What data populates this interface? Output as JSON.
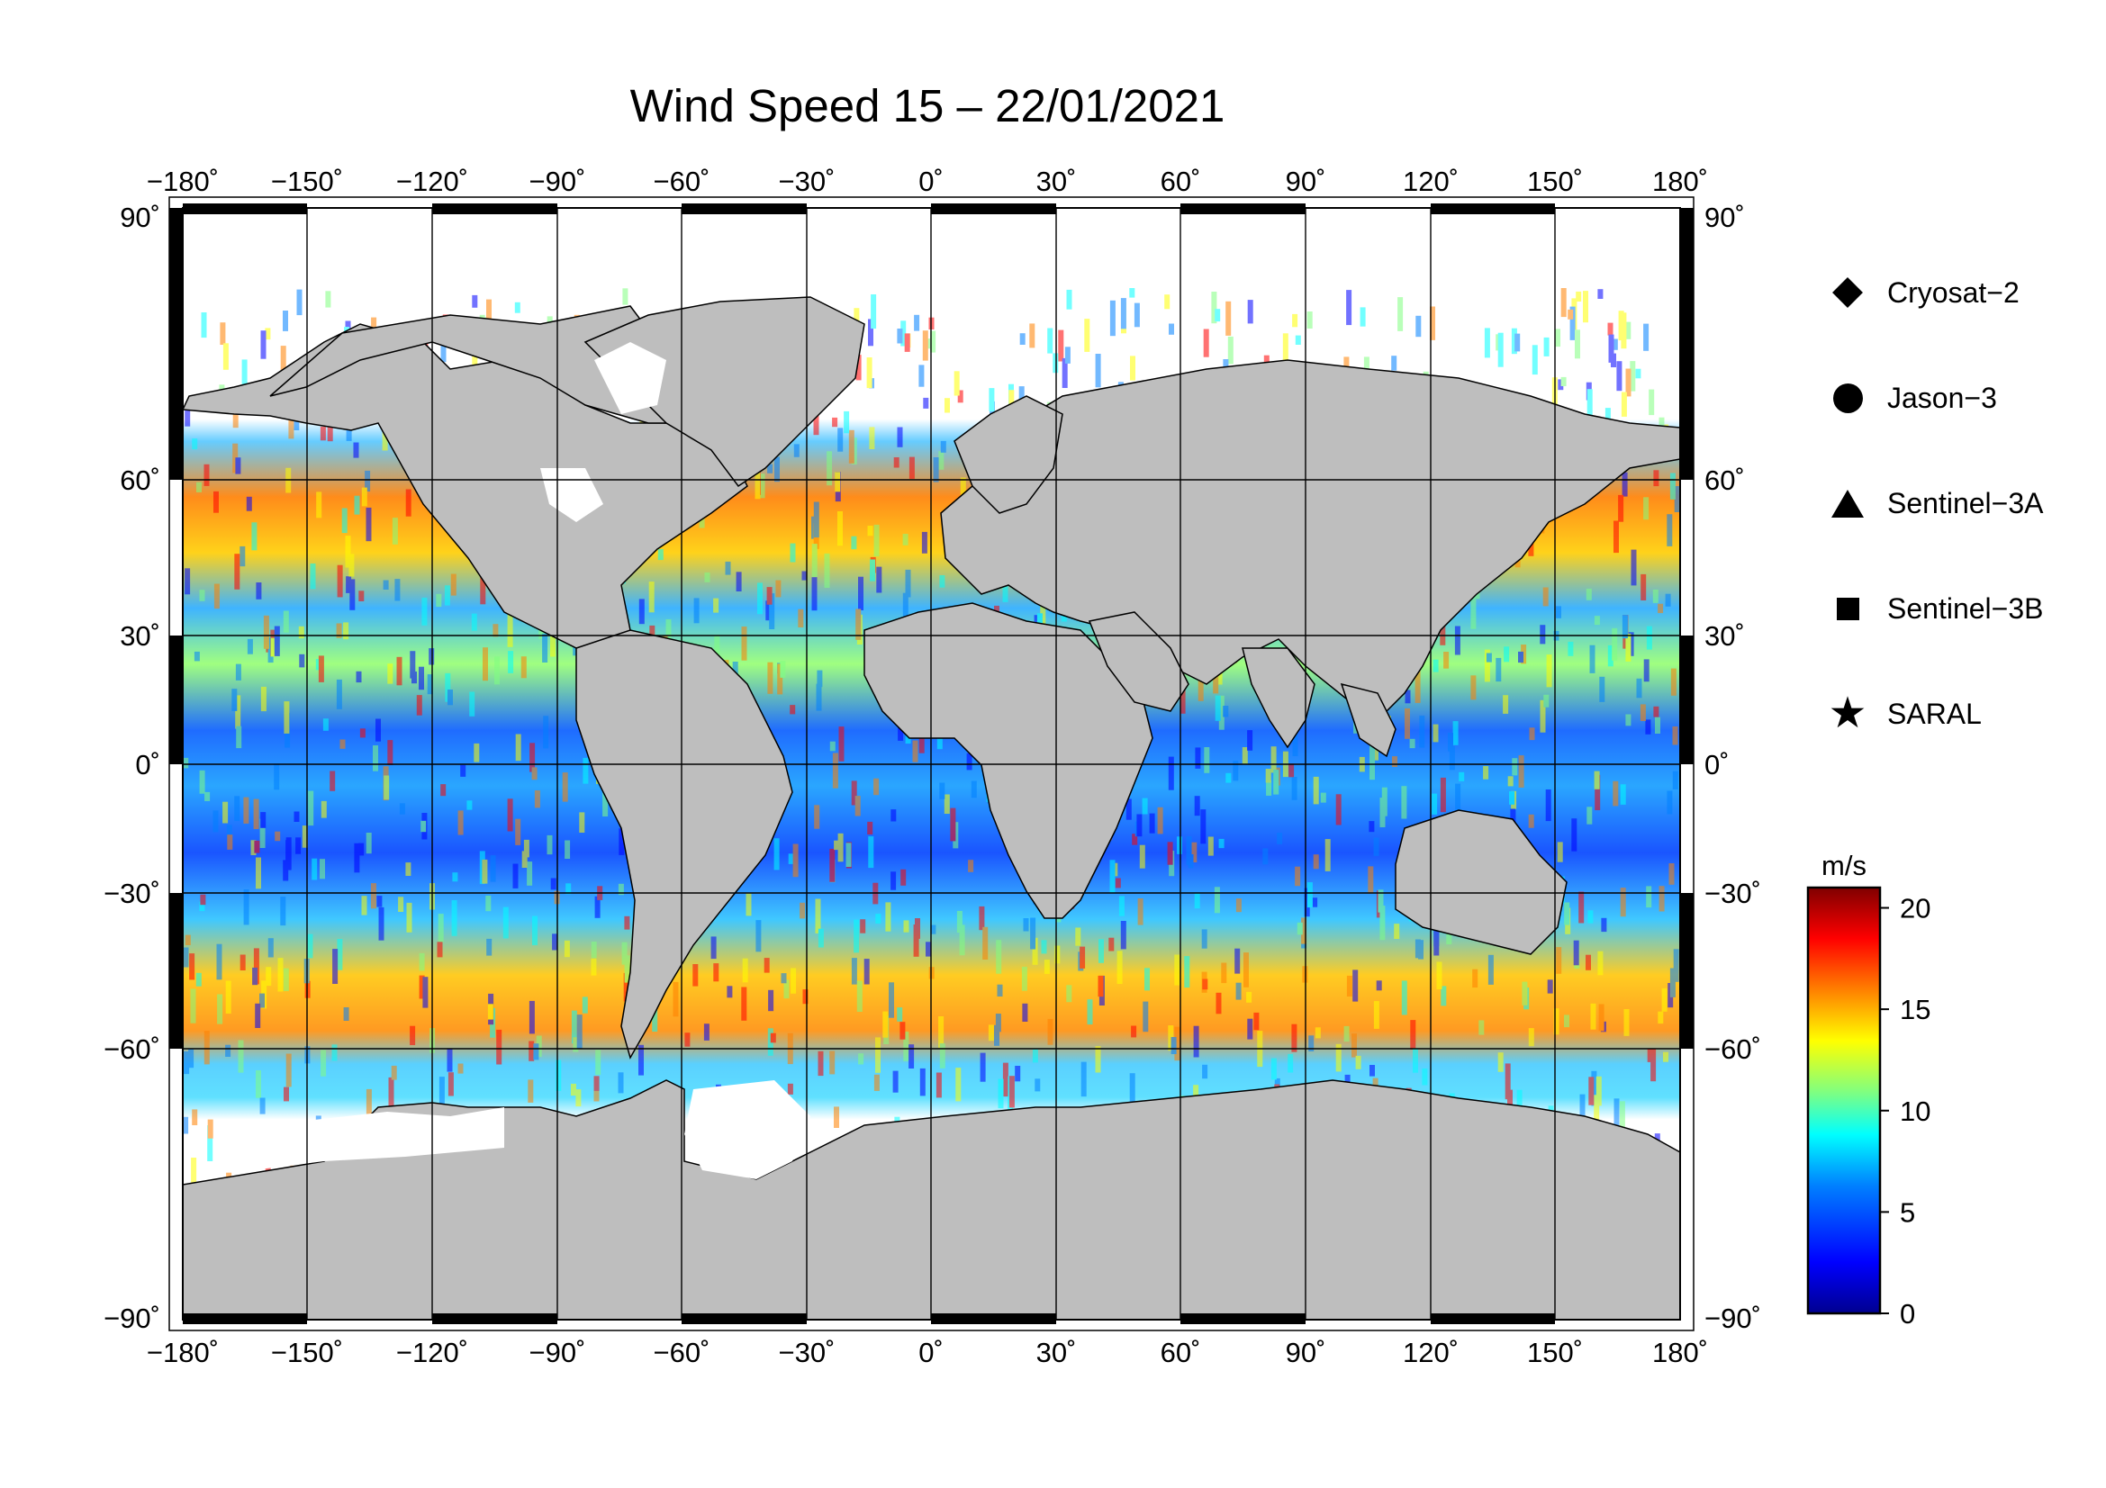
{
  "title": "Wind Speed 15 – 22/01/2021",
  "map": {
    "projection": "equirectangular",
    "lon_range": [
      -180,
      180
    ],
    "lat_range": [
      -90,
      90
    ],
    "grid_step": 30,
    "land_color": "#bebebe",
    "ice_color": "#ffffff",
    "lon_ticks": [
      "−180˚",
      "−150˚",
      "−120˚",
      "−90˚",
      "−60˚",
      "−30˚",
      "0˚",
      "30˚",
      "60˚",
      "90˚",
      "120˚",
      "150˚",
      "180˚"
    ],
    "lat_ticks": [
      "90˚",
      "60˚",
      "30˚",
      "0˚",
      "−30˚",
      "−60˚",
      "−90˚"
    ]
  },
  "legend": {
    "items": [
      {
        "label": "Cryosat−2",
        "symbol": "diamond"
      },
      {
        "label": "Jason−3",
        "symbol": "circle"
      },
      {
        "label": "Sentinel−3A",
        "symbol": "triangle"
      },
      {
        "label": "Sentinel−3B",
        "symbol": "square"
      },
      {
        "label": "SARAL",
        "symbol": "star",
        "glyph": "★"
      }
    ]
  },
  "colorbar": {
    "unit": "m/s",
    "min": 0,
    "max": 21,
    "ticks": [
      {
        "value": 0,
        "label": "0"
      },
      {
        "value": 5,
        "label": "5"
      },
      {
        "value": 10,
        "label": "10"
      },
      {
        "value": 15,
        "label": "15"
      },
      {
        "value": 20,
        "label": "20"
      }
    ],
    "colors": [
      "#00008f",
      "#0000ff",
      "#0080ff",
      "#00ffff",
      "#80ff80",
      "#ffff00",
      "#ff8000",
      "#ff0000",
      "#800000"
    ]
  }
}
